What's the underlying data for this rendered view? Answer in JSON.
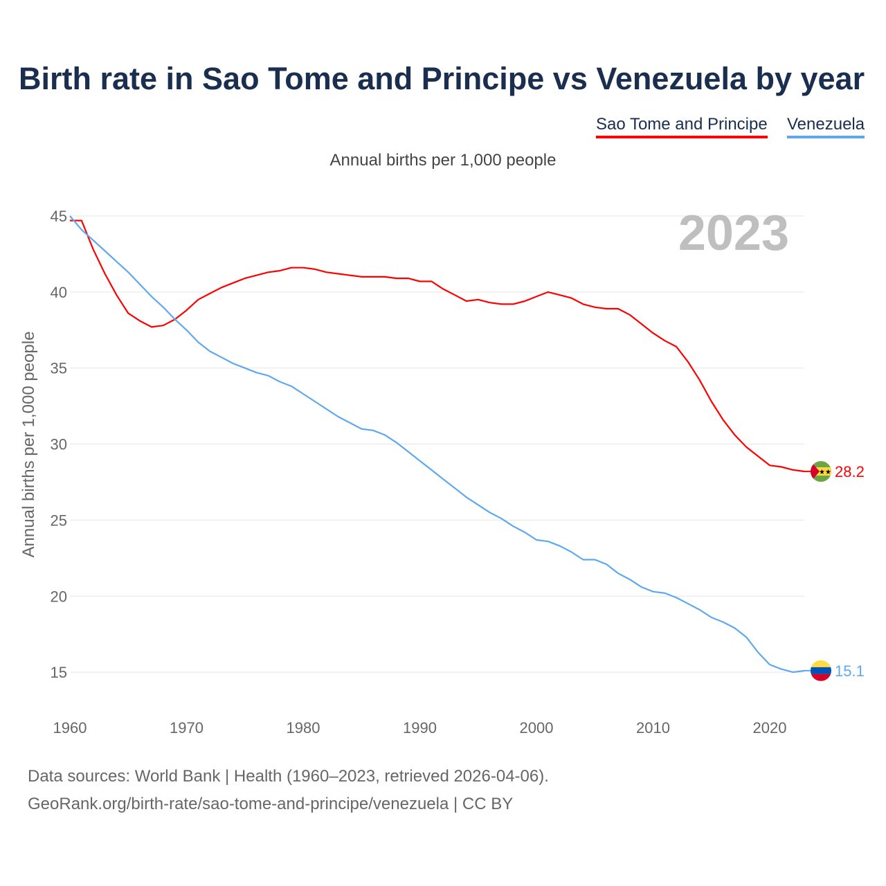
{
  "chart_data": {
    "type": "line",
    "title": "Birth rate in Sao Tome and Principe vs Venezuela by year",
    "subtitle": "Annual births per 1,000 people",
    "ylabel": "Annual births per 1,000 people",
    "xlabel": "",
    "year_label": "2023",
    "ylim": [
      13,
      46
    ],
    "xlim": [
      1960,
      2023
    ],
    "yticks": [
      "15",
      "20",
      "25",
      "30",
      "35",
      "40",
      "45"
    ],
    "xticks": [
      "1960",
      "1970",
      "1980",
      "1990",
      "2000",
      "2010",
      "2020"
    ],
    "grid": true,
    "legend_placement": "top-right",
    "x_start": 1960,
    "series": [
      {
        "name": "Sao Tome and Principe",
        "color": "#ff0000",
        "end_label": "28.2",
        "flag": "sao-tome-flag",
        "values": [
          44.7,
          44.7,
          42.8,
          41.2,
          39.8,
          38.6,
          38.1,
          37.7,
          37.8,
          38.2,
          38.8,
          39.5,
          39.9,
          40.3,
          40.6,
          40.9,
          41.1,
          41.3,
          41.4,
          41.6,
          41.6,
          41.5,
          41.3,
          41.2,
          41.1,
          41.0,
          41.0,
          41.0,
          40.9,
          40.9,
          40.7,
          40.7,
          40.2,
          39.8,
          39.4,
          39.5,
          39.3,
          39.2,
          39.2,
          39.4,
          39.7,
          40.0,
          39.8,
          39.6,
          39.2,
          39.0,
          38.9,
          38.9,
          38.5,
          37.9,
          37.3,
          36.8,
          36.4,
          35.4,
          34.2,
          32.8,
          31.6,
          30.6,
          29.8,
          29.2,
          28.6,
          28.5,
          28.3,
          28.2
        ]
      },
      {
        "name": "Venezuela",
        "color": "#5ea8ee",
        "end_label": "15.1",
        "flag": "venezuela-flag",
        "values": [
          45.0,
          44.1,
          43.4,
          42.7,
          42.0,
          41.3,
          40.5,
          39.7,
          39.0,
          38.2,
          37.5,
          36.7,
          36.1,
          35.7,
          35.3,
          35.0,
          34.7,
          34.5,
          34.1,
          33.8,
          33.3,
          32.8,
          32.3,
          31.8,
          31.4,
          31.0,
          30.9,
          30.6,
          30.1,
          29.5,
          28.9,
          28.3,
          27.7,
          27.1,
          26.5,
          26.0,
          25.5,
          25.1,
          24.6,
          24.2,
          23.7,
          23.6,
          23.3,
          22.9,
          22.4,
          22.4,
          22.1,
          21.5,
          21.1,
          20.6,
          20.3,
          20.2,
          19.9,
          19.5,
          19.1,
          18.6,
          18.3,
          17.9,
          17.3,
          16.3,
          15.5,
          15.2,
          15.0,
          15.1
        ]
      }
    ]
  },
  "footer": {
    "source": "Data sources: World Bank | Health (1960–2023, retrieved 2026-04-06).",
    "url": "GeoRank.org/birth-rate/sao-tome-and-principe/venezuela | CC BY"
  }
}
